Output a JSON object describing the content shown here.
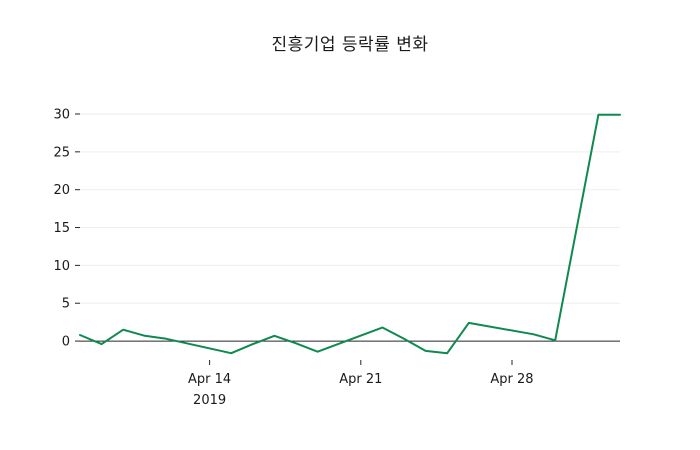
{
  "chart_data": {
    "type": "line",
    "title": "진흥기업 등락률 변화",
    "x_range": [
      "2019-04-08",
      "2019-05-03"
    ],
    "ylim": [
      -2.5,
      30
    ],
    "y_ticks": [
      0,
      5,
      10,
      15,
      20,
      25,
      30
    ],
    "x_ticks": [
      {
        "date": "2019-04-14",
        "label": "Apr 14",
        "sublabel": "2019"
      },
      {
        "date": "2019-04-21",
        "label": "Apr 21"
      },
      {
        "date": "2019-04-28",
        "label": "Apr 28"
      }
    ],
    "grid": true,
    "zero_line": true,
    "legend": "none",
    "line_color": "#0e8a4e",
    "axis_color": "#262626",
    "grid_color": "#ededed",
    "series": [
      {
        "name": "등락률",
        "color": "#0e8a4e",
        "x": [
          "2019-04-08",
          "2019-04-09",
          "2019-04-10",
          "2019-04-11",
          "2019-04-12",
          "2019-04-15",
          "2019-04-16",
          "2019-04-17",
          "2019-04-18",
          "2019-04-19",
          "2019-04-22",
          "2019-04-23",
          "2019-04-24",
          "2019-04-25",
          "2019-04-26",
          "2019-04-29",
          "2019-04-30",
          "2019-05-02",
          "2019-05-03"
        ],
        "values": [
          0.8,
          -0.4,
          1.5,
          0.7,
          0.3,
          -1.6,
          -0.4,
          0.7,
          -0.3,
          -1.4,
          1.8,
          0.3,
          -1.3,
          -1.6,
          2.4,
          0.9,
          0.1,
          29.9,
          29.9
        ]
      }
    ]
  }
}
